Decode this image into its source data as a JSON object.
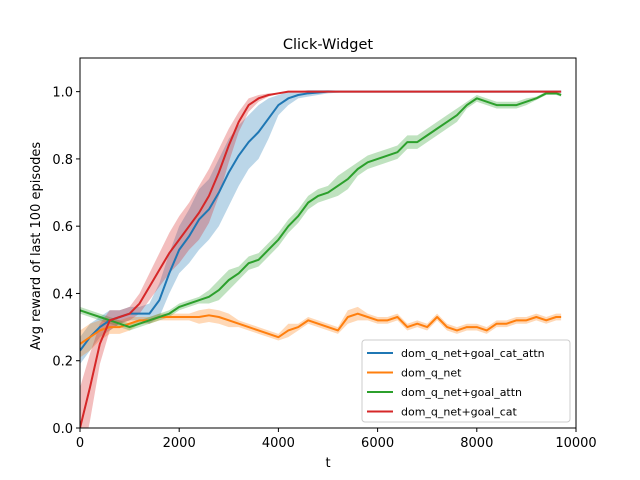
{
  "chart_data": {
    "type": "line",
    "title": "Click-Widget",
    "xlabel": "t",
    "ylabel": "Avg reward of last 100 episodes",
    "xlim": [
      0,
      10000
    ],
    "ylim": [
      0,
      1.1
    ],
    "x_ticks": [
      0,
      2000,
      4000,
      6000,
      8000,
      10000
    ],
    "x_tick_labels": [
      "0",
      "2000",
      "4000",
      "6000",
      "8000",
      "10000"
    ],
    "y_ticks": [
      0,
      0.2,
      0.4,
      0.6,
      0.8,
      1.0
    ],
    "y_tick_labels": [
      "0.0",
      "0.2",
      "0.4",
      "0.6",
      "0.8",
      "1.0"
    ],
    "legend_position": "lower-right",
    "series": [
      {
        "name": "dom_q_net+goal_cat_attn",
        "color": "#1f77b4",
        "x": [
          0,
          200,
          400,
          600,
          800,
          1000,
          1200,
          1400,
          1600,
          1800,
          2000,
          2200,
          2400,
          2600,
          2800,
          3000,
          3200,
          3400,
          3600,
          3800,
          4000,
          4200,
          4400,
          4600,
          5000,
          5500,
          6000,
          7000,
          8000,
          9000,
          9700
        ],
        "y": [
          0.23,
          0.27,
          0.3,
          0.32,
          0.33,
          0.34,
          0.34,
          0.34,
          0.38,
          0.46,
          0.53,
          0.57,
          0.62,
          0.65,
          0.7,
          0.76,
          0.81,
          0.85,
          0.88,
          0.92,
          0.96,
          0.98,
          0.99,
          0.995,
          1.0,
          1.0,
          1.0,
          1.0,
          1.0,
          1.0,
          1.0
        ],
        "band": [
          0.04,
          0.04,
          0.03,
          0.03,
          0.02,
          0.02,
          0.02,
          0.03,
          0.05,
          0.06,
          0.07,
          0.08,
          0.09,
          0.09,
          0.1,
          0.1,
          0.09,
          0.08,
          0.08,
          0.06,
          0.03,
          0.02,
          0.01,
          0.01,
          0.005,
          0.0,
          0.0,
          0.0,
          0.0,
          0.0,
          0.0
        ]
      },
      {
        "name": "dom_q_net",
        "color": "#ff7f0e",
        "x": [
          0,
          200,
          400,
          600,
          800,
          1000,
          1200,
          1400,
          1600,
          1800,
          2000,
          2200,
          2400,
          2600,
          2800,
          3000,
          3200,
          3400,
          3600,
          3800,
          4000,
          4200,
          4400,
          4600,
          4800,
          5000,
          5200,
          5400,
          5600,
          5800,
          6000,
          6200,
          6400,
          6600,
          6800,
          7000,
          7200,
          7400,
          7600,
          7800,
          8000,
          8200,
          8400,
          8600,
          8800,
          9000,
          9200,
          9400,
          9600,
          9700
        ],
        "y": [
          0.25,
          0.27,
          0.29,
          0.3,
          0.3,
          0.31,
          0.32,
          0.32,
          0.33,
          0.33,
          0.33,
          0.33,
          0.33,
          0.335,
          0.33,
          0.32,
          0.31,
          0.3,
          0.29,
          0.28,
          0.27,
          0.29,
          0.3,
          0.32,
          0.31,
          0.3,
          0.29,
          0.33,
          0.34,
          0.33,
          0.32,
          0.32,
          0.33,
          0.3,
          0.31,
          0.3,
          0.33,
          0.3,
          0.29,
          0.3,
          0.3,
          0.29,
          0.31,
          0.31,
          0.32,
          0.32,
          0.33,
          0.32,
          0.33,
          0.33
        ],
        "band": [
          0.04,
          0.04,
          0.03,
          0.02,
          0.02,
          0.02,
          0.01,
          0.01,
          0.01,
          0.01,
          0.01,
          0.01,
          0.02,
          0.02,
          0.02,
          0.02,
          0.01,
          0.01,
          0.01,
          0.01,
          0.01,
          0.02,
          0.01,
          0.01,
          0.01,
          0.01,
          0.01,
          0.02,
          0.02,
          0.01,
          0.01,
          0.01,
          0.01,
          0.01,
          0.01,
          0.01,
          0.01,
          0.01,
          0.01,
          0.01,
          0.01,
          0.01,
          0.01,
          0.01,
          0.01,
          0.01,
          0.01,
          0.01,
          0.01,
          0.01
        ]
      },
      {
        "name": "dom_q_net+goal_attn",
        "color": "#2ca02c",
        "x": [
          0,
          200,
          400,
          600,
          800,
          1000,
          1200,
          1400,
          1600,
          1800,
          2000,
          2200,
          2400,
          2600,
          2800,
          3000,
          3200,
          3400,
          3600,
          3800,
          4000,
          4200,
          4400,
          4600,
          4800,
          5000,
          5200,
          5400,
          5600,
          5800,
          6000,
          6200,
          6400,
          6600,
          6800,
          7000,
          7200,
          7400,
          7600,
          7800,
          8000,
          8200,
          8400,
          8600,
          8800,
          9000,
          9200,
          9400,
          9600,
          9700
        ],
        "y": [
          0.35,
          0.34,
          0.33,
          0.32,
          0.31,
          0.3,
          0.31,
          0.32,
          0.33,
          0.34,
          0.36,
          0.37,
          0.38,
          0.39,
          0.41,
          0.44,
          0.46,
          0.49,
          0.5,
          0.53,
          0.56,
          0.6,
          0.63,
          0.67,
          0.69,
          0.7,
          0.72,
          0.74,
          0.77,
          0.79,
          0.8,
          0.81,
          0.82,
          0.85,
          0.85,
          0.87,
          0.89,
          0.91,
          0.93,
          0.96,
          0.98,
          0.97,
          0.96,
          0.96,
          0.96,
          0.97,
          0.98,
          0.995,
          0.995,
          0.99
        ],
        "band": [
          0.01,
          0.01,
          0.01,
          0.01,
          0.01,
          0.01,
          0.01,
          0.01,
          0.01,
          0.01,
          0.01,
          0.01,
          0.01,
          0.02,
          0.03,
          0.03,
          0.02,
          0.02,
          0.02,
          0.02,
          0.02,
          0.02,
          0.02,
          0.02,
          0.02,
          0.02,
          0.03,
          0.03,
          0.02,
          0.02,
          0.02,
          0.02,
          0.02,
          0.02,
          0.02,
          0.02,
          0.02,
          0.02,
          0.02,
          0.01,
          0.01,
          0.01,
          0.01,
          0.01,
          0.01,
          0.01,
          0.005,
          0.005,
          0.005,
          0.005
        ]
      },
      {
        "name": "dom_q_net+goal_cat",
        "color": "#d62728",
        "x": [
          0,
          200,
          400,
          600,
          800,
          1000,
          1200,
          1400,
          1600,
          1800,
          2000,
          2200,
          2400,
          2600,
          2800,
          3000,
          3200,
          3400,
          3600,
          3800,
          4000,
          4200,
          4400,
          4800,
          5500,
          6000,
          7000,
          8000,
          9000,
          9700
        ],
        "y": [
          0.0,
          0.12,
          0.25,
          0.32,
          0.33,
          0.34,
          0.37,
          0.42,
          0.47,
          0.52,
          0.56,
          0.6,
          0.64,
          0.69,
          0.76,
          0.84,
          0.91,
          0.96,
          0.98,
          0.99,
          0.995,
          1.0,
          1.0,
          1.0,
          1.0,
          1.0,
          1.0,
          1.0,
          1.0,
          1.0
        ],
        "band": [
          0.12,
          0.1,
          0.06,
          0.03,
          0.02,
          0.02,
          0.03,
          0.04,
          0.05,
          0.06,
          0.07,
          0.07,
          0.08,
          0.08,
          0.07,
          0.05,
          0.03,
          0.02,
          0.01,
          0.005,
          0.0,
          0.0,
          0.0,
          0.0,
          0.0,
          0.0,
          0.0,
          0.0,
          0.0,
          0.0
        ]
      }
    ]
  }
}
